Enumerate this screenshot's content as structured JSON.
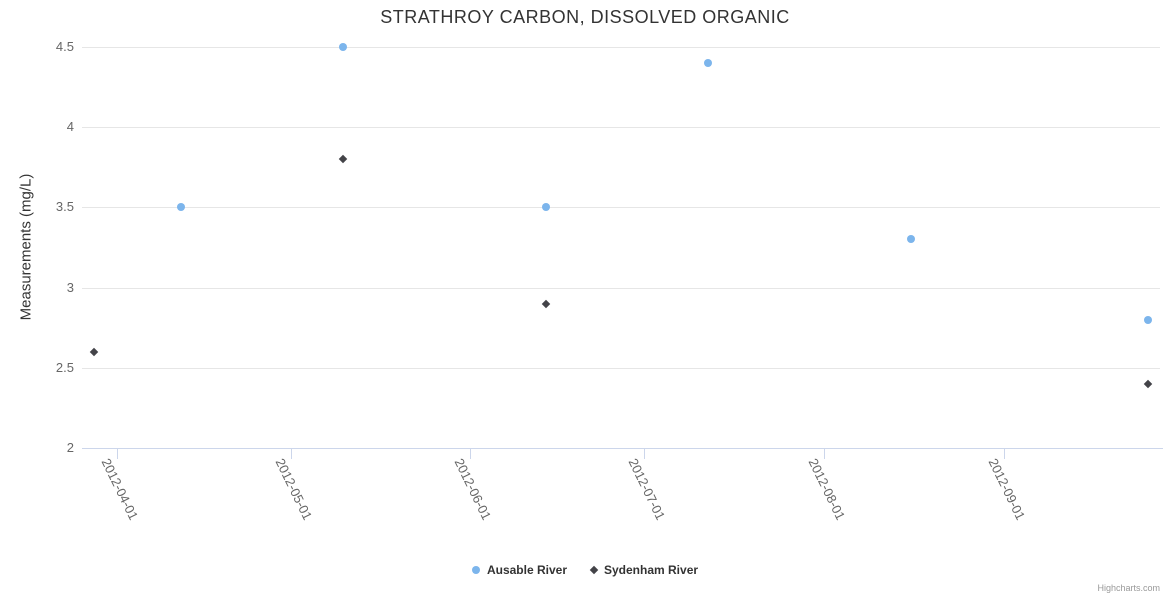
{
  "chart_data": {
    "type": "scatter",
    "title": "STRATHROY CARBON, DISSOLVED ORGANIC",
    "xlabel": "",
    "ylabel": "Measurements (mg/L)",
    "x_type": "datetime",
    "x_range": [
      "2012-03-26",
      "2012-09-28"
    ],
    "x_ticks": [
      {
        "date": "2012-04-01",
        "label": "2012-04-01"
      },
      {
        "date": "2012-05-01",
        "label": "2012-05-01"
      },
      {
        "date": "2012-06-01",
        "label": "2012-06-01"
      },
      {
        "date": "2012-07-01",
        "label": "2012-07-01"
      },
      {
        "date": "2012-08-01",
        "label": "2012-08-01"
      },
      {
        "date": "2012-09-01",
        "label": "2012-09-01"
      }
    ],
    "y_ticks": [
      2,
      2.5,
      3,
      3.5,
      4,
      4.5
    ],
    "ylim": [
      2,
      4.5
    ],
    "grid": true,
    "legend_position": "bottom-center",
    "series": [
      {
        "name": "Ausable River",
        "marker": "circle",
        "color": "#7cb5ec",
        "points": [
          {
            "x": "2012-04-12",
            "y": 3.5
          },
          {
            "x": "2012-05-10",
            "y": 4.5
          },
          {
            "x": "2012-06-14",
            "y": 3.5
          },
          {
            "x": "2012-07-12",
            "y": 4.4
          },
          {
            "x": "2012-08-16",
            "y": 3.3
          },
          {
            "x": "2012-09-26",
            "y": 2.8
          }
        ]
      },
      {
        "name": "Sydenham River",
        "marker": "diamond",
        "color": "#434348",
        "points": [
          {
            "x": "2012-03-28",
            "y": 2.6
          },
          {
            "x": "2012-05-10",
            "y": 3.8
          },
          {
            "x": "2012-06-14",
            "y": 2.9
          },
          {
            "x": "2012-09-26",
            "y": 2.4
          }
        ]
      }
    ]
  },
  "credits": "Highcharts.com",
  "colors": {
    "title": "#333333",
    "axis_title": "#333333",
    "tick_label": "#666666",
    "gridline": "#e6e6e6",
    "axis_line": "#ccd6eb",
    "legend_label": "#333333",
    "credits": "#999999"
  }
}
